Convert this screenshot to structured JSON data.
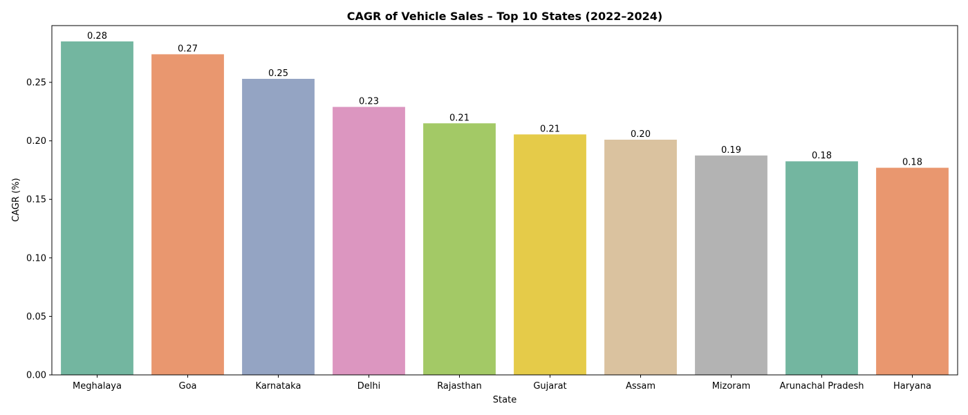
{
  "chart_data": {
    "type": "bar",
    "title": "CAGR of Vehicle Sales – Top 10 States (2022–2024)",
    "xlabel": "State",
    "ylabel": "CAGR (%)",
    "categories": [
      "Meghalaya",
      "Goa",
      "Karnataka",
      "Delhi",
      "Rajasthan",
      "Gujarat",
      "Assam",
      "Mizoram",
      "Arunachal Pradesh",
      "Haryana"
    ],
    "values": [
      0.285,
      0.274,
      0.253,
      0.229,
      0.215,
      0.2055,
      0.201,
      0.1875,
      0.1825,
      0.177
    ],
    "value_labels": [
      "0.28",
      "0.27",
      "0.25",
      "0.23",
      "0.21",
      "0.21",
      "0.20",
      "0.19",
      "0.18",
      "0.18"
    ],
    "colors": [
      "#73b6a0",
      "#e9976f",
      "#94a4c3",
      "#dc96c0",
      "#a3c966",
      "#e5cb49",
      "#dac29f",
      "#b3b3b3",
      "#73b6a0",
      "#e9976f"
    ],
    "ylim": [
      0,
      0.2985
    ],
    "yticks": [
      0.0,
      0.05,
      0.1,
      0.15,
      0.2,
      0.25
    ],
    "ytick_labels": [
      "0.00",
      "0.05",
      "0.10",
      "0.15",
      "0.20",
      "0.25"
    ],
    "grid": false,
    "legend": "none"
  }
}
